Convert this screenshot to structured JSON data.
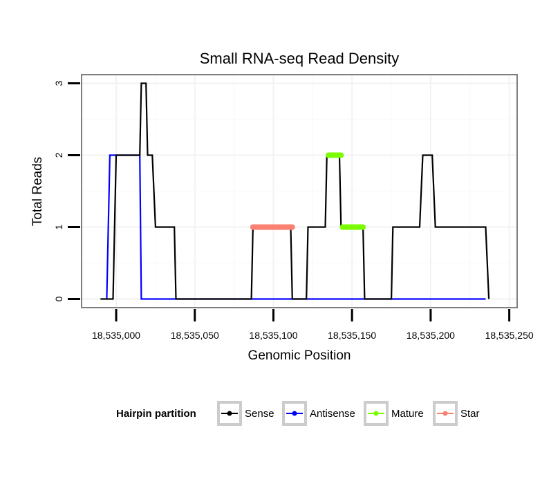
{
  "chart_data": {
    "type": "line",
    "title": "Small RNA-seq Read Density",
    "xlabel": "Genomic Position",
    "ylabel": "Total Reads",
    "xlim": [
      18534978,
      18535255
    ],
    "ylim": [
      -0.12,
      3.12
    ],
    "x_ticks": [
      18535000,
      18535050,
      18535100,
      18535150,
      18535200,
      18535250
    ],
    "x_tick_labels": [
      "18,535,000",
      "18,535,050",
      "18,535,100",
      "18,535,150",
      "18,535,200",
      "18,535,250"
    ],
    "y_ticks": [
      0,
      1,
      2,
      3
    ],
    "y_tick_labels": [
      "0",
      "1",
      "2",
      "3"
    ],
    "grid": true,
    "legend": {
      "title": "Hairpin partition",
      "placement": "bottom",
      "entries": [
        "Sense",
        "Antisense",
        "Mature",
        "Star"
      ]
    },
    "series": [
      {
        "name": "Sense",
        "color": "#000000",
        "style": "line",
        "x": [
          18534990,
          18534998,
          18535000,
          18535015,
          18535016,
          18535019,
          18535020,
          18535023,
          18535025,
          18535037,
          18535038,
          18535086,
          18535087,
          18535111,
          18535112,
          18535121,
          18535122,
          18535133,
          18535134,
          18535142,
          18535143,
          18535157,
          18535158,
          18535175,
          18535176,
          18535193,
          18535195,
          18535201,
          18535203,
          18535235,
          18535237
        ],
        "y": [
          0,
          0,
          2,
          2,
          3,
          3,
          2,
          2,
          1,
          1,
          0,
          0,
          1,
          1,
          0,
          0,
          1,
          1,
          2,
          2,
          1,
          1,
          0,
          0,
          1,
          1,
          2,
          2,
          1,
          1,
          0
        ]
      },
      {
        "name": "Antisense",
        "color": "#0000ff",
        "style": "line",
        "x": [
          18534994,
          18534996,
          18535015,
          18535016,
          18535235
        ],
        "y": [
          0,
          2,
          2,
          0,
          0
        ]
      },
      {
        "name": "Mature",
        "color": "#7cfc00",
        "style": "thick",
        "segments": [
          {
            "x": [
              18535135,
              18535143
            ],
            "y": 2
          },
          {
            "x": [
              18535144,
              18535157
            ],
            "y": 1
          }
        ]
      },
      {
        "name": "Star",
        "color": "#fa8072",
        "style": "thick",
        "segments": [
          {
            "x": [
              18535087,
              18535112
            ],
            "y": 1
          }
        ]
      }
    ]
  }
}
